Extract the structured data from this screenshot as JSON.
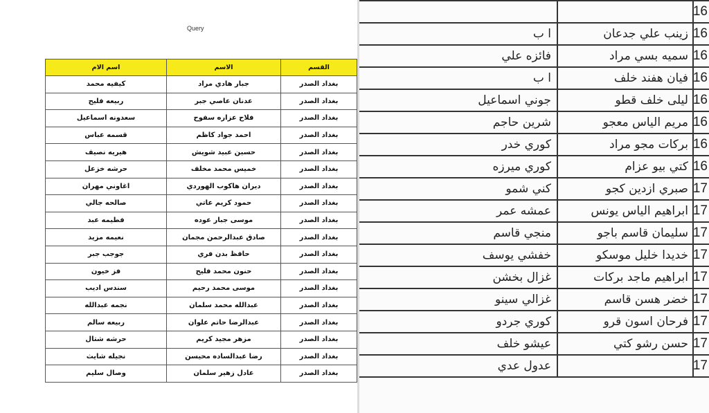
{
  "left_document": {
    "title": "Query",
    "header_color": "#f7ea1a",
    "columns": {
      "department": "القسم",
      "name": "الاسم",
      "mother_name": "اسم الام"
    },
    "rows": [
      {
        "department": "بغداد الصدر",
        "name": "جبار هادي مراد",
        "mother_name": "كيفيه محمد"
      },
      {
        "department": "بغداد الصدر",
        "name": "عدنان عاصي جبر",
        "mother_name": "ربيعه فليح"
      },
      {
        "department": "بغداد الصدر",
        "name": "فلاح عزاره سفوح",
        "mother_name": "سعدونه اسماعيل"
      },
      {
        "department": "بغداد الصدر",
        "name": "احمد جواد كاظم",
        "mother_name": "قسمه عباس"
      },
      {
        "department": "بغداد الصدر",
        "name": "حسين عبيد شويش",
        "mother_name": "هيريه نصيف"
      },
      {
        "department": "بغداد الصدر",
        "name": "خميس محمد مخلف",
        "mother_name": "حرشه خزعل"
      },
      {
        "department": "بغداد الصدر",
        "name": "ديران هاكوب الهوردي",
        "mother_name": "اغاوني مهران"
      },
      {
        "department": "بغداد الصدر",
        "name": "حمود كريم عاتي",
        "mother_name": "صالحه جالي"
      },
      {
        "department": "بغداد الصدر",
        "name": "موسى جبار عوده",
        "mother_name": "فطيمه عبد"
      },
      {
        "department": "بغداد الصدر",
        "name": "صادق عبدالرحمن مجمان",
        "mother_name": "نعيمه مزيد"
      },
      {
        "department": "بغداد الصدر",
        "name": "حافظ بدن فري",
        "mother_name": "جوجب جبر"
      },
      {
        "department": "بغداد الصدر",
        "name": "حنون محمد فليح",
        "mother_name": "فز خيون"
      },
      {
        "department": "بغداد الصدر",
        "name": "موسى محمد رحيم",
        "mother_name": "سندس اديب"
      },
      {
        "department": "بغداد الصدر",
        "name": "عبدالله محمد سلمان",
        "mother_name": "نجمه عبدالله"
      },
      {
        "department": "بغداد الصدر",
        "name": "عبدالرضا حاتم علوان",
        "mother_name": "ربيعه سالم"
      },
      {
        "department": "بغداد الصدر",
        "name": "مزهر مجيد كريم",
        "mother_name": "حرشه شتال"
      },
      {
        "department": "بغداد الصدر",
        "name": "رضا عبدالساده محيسن",
        "mother_name": "نجيله شايث"
      },
      {
        "department": "بغداد الصدر",
        "name": "عادل زهير سلمان",
        "mother_name": "وصال سليم"
      }
    ]
  },
  "right_document": {
    "rows": [
      {
        "number": "16",
        "name": "",
        "mother_name": ""
      },
      {
        "number": "16",
        "name": "زينب علي جدعان",
        "mother_name": "ا ب"
      },
      {
        "number": "16",
        "name": "سميه بسي مراد",
        "mother_name": "فائزه علي"
      },
      {
        "number": "16",
        "name": "فيان هفند خلف",
        "mother_name": "ا ب"
      },
      {
        "number": "16",
        "name": "ليلى خلف قطو",
        "mother_name": "جوني اسماعيل"
      },
      {
        "number": "16",
        "name": "مريم الياس معجو",
        "mother_name": "شرين حاجم"
      },
      {
        "number": "16",
        "name": "بركات مجو مراد",
        "mother_name": "كوري خدر"
      },
      {
        "number": "16",
        "name": "كتي بيو عزام",
        "mother_name": "كوري ميرزه"
      },
      {
        "number": "17",
        "name": "صبري ازدين كجو",
        "mother_name": "كني شمو"
      },
      {
        "number": "17",
        "name": "ابراهيم الياس يونس",
        "mother_name": "عمشه عمر"
      },
      {
        "number": "17",
        "name": "سليمان قاسم باجو",
        "mother_name": "منجي قاسم"
      },
      {
        "number": "17",
        "name": "خديدا خليل موسكو",
        "mother_name": "خفشي يوسف"
      },
      {
        "number": "17",
        "name": "ابراهيم ماجد بركات",
        "mother_name": "غزال بخشن"
      },
      {
        "number": "17",
        "name": "خضر هسن قاسم",
        "mother_name": "غزالي سينو"
      },
      {
        "number": "17",
        "name": "فرحان اسون قرو",
        "mother_name": "كوري جردو"
      },
      {
        "number": "17",
        "name": "حسن رشو كتي",
        "mother_name": "عيشو خلف"
      },
      {
        "number": "17",
        "name": "",
        "mother_name": "عدول عدي"
      }
    ]
  }
}
